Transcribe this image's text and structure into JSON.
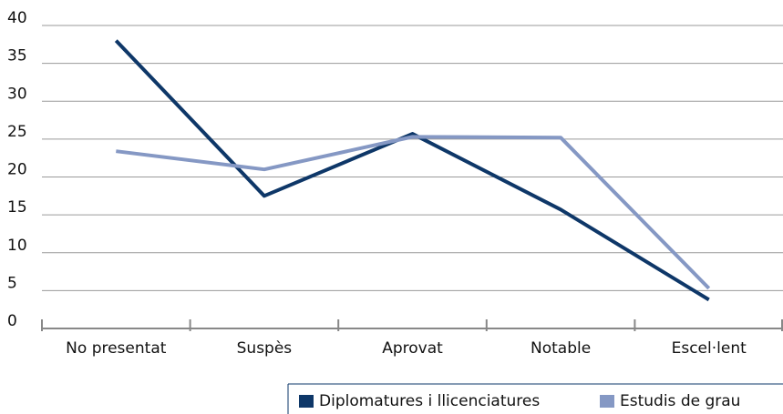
{
  "chart_data": {
    "type": "line",
    "categories": [
      "No presentat",
      "Suspès",
      "Aprovat",
      "Notable",
      "Escel·lent"
    ],
    "series": [
      {
        "name": "Diplomatures i llicenciatures",
        "color": "#0e3768",
        "values": [
          38,
          17.5,
          25.7,
          15.7,
          3.8
        ]
      },
      {
        "name": "Estudis de grau",
        "color": "#8598c4",
        "values": [
          23.4,
          21,
          25.3,
          25.2,
          5.3
        ]
      }
    ],
    "ylim": [
      0,
      40
    ],
    "yticks": [
      0,
      5,
      10,
      15,
      20,
      25,
      30,
      35,
      40
    ],
    "grid": true,
    "legend": "bottom-right"
  }
}
